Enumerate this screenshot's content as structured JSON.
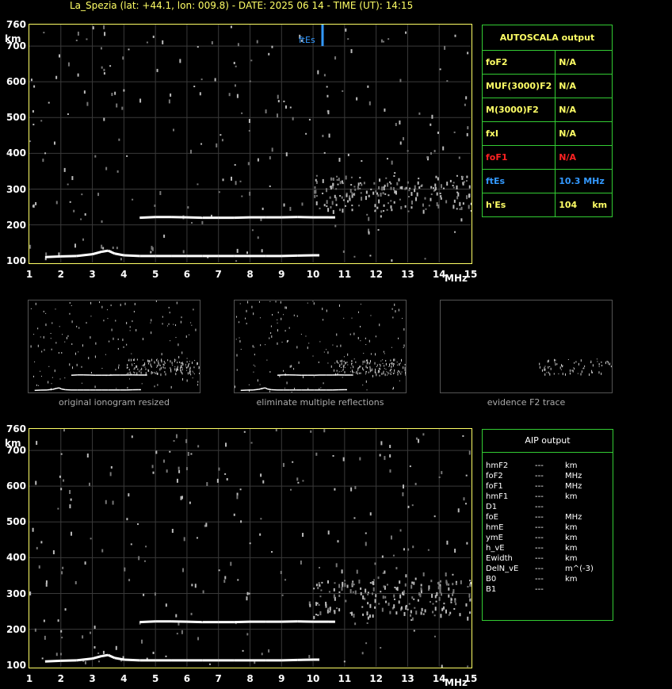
{
  "header": {
    "title": "La_Spezia (lat: +44.1, lon: 009.8) - DATE: 2025 06 14 - TIME (UT): 14:15"
  },
  "axes": {
    "y_unit": "km",
    "x_unit": "MHz",
    "y_ticks": [
      "760",
      "700",
      "600",
      "500",
      "400",
      "300",
      "200",
      "100"
    ],
    "x_ticks": [
      "1",
      "2",
      "3",
      "4",
      "5",
      "6",
      "7",
      "8",
      "9",
      "10",
      "11",
      "12",
      "13",
      "14",
      "15"
    ]
  },
  "marker": {
    "label": "ftEs",
    "value": 10.3,
    "color": "#3399ff"
  },
  "small_panels": [
    {
      "caption": "original ionogram resized"
    },
    {
      "caption": "eliminate multiple reflections"
    },
    {
      "caption": "evidence F2 trace"
    }
  ],
  "autoscala": {
    "header": "AUTOSCALA output",
    "rows": [
      {
        "label": "foF2",
        "value": "N/A",
        "color": "#ffff66"
      },
      {
        "label": "MUF(3000)F2",
        "value": "N/A",
        "color": "#ffff66"
      },
      {
        "label": "M(3000)F2",
        "value": "N/A",
        "color": "#ffff66"
      },
      {
        "label": "fxI",
        "value": "N/A",
        "color": "#ffff66"
      },
      {
        "label": "foF1",
        "value": "N/A",
        "color": "#ff2222"
      },
      {
        "label": "ftEs",
        "value": "10.3 MHz",
        "color": "#3399ff"
      },
      {
        "label": "h'Es",
        "value": "104",
        "unit": "km",
        "color": "#ffff66"
      }
    ]
  },
  "aip": {
    "header": "AIP output",
    "rows": [
      {
        "param": "hmF2",
        "value": "---",
        "unit": "km"
      },
      {
        "param": "foF2",
        "value": "---",
        "unit": "MHz"
      },
      {
        "param": "foF1",
        "value": "---",
        "unit": "MHz"
      },
      {
        "param": "hmF1",
        "value": "---",
        "unit": "km"
      },
      {
        "param": "D1",
        "value": "---",
        "unit": ""
      },
      {
        "param": "foE",
        "value": "---",
        "unit": "MHz"
      },
      {
        "param": "hmE",
        "value": "---",
        "unit": "km"
      },
      {
        "param": "ymE",
        "value": "---",
        "unit": "km"
      },
      {
        "param": "h_vE",
        "value": "---",
        "unit": "km"
      },
      {
        "param": "Ewidth",
        "value": "---",
        "unit": "km"
      },
      {
        "param": "DelN_vE",
        "value": "---",
        "unit": "m^(-3)"
      },
      {
        "param": "B0",
        "value": "---",
        "unit": "km"
      },
      {
        "param": "B1",
        "value": "---",
        "unit": ""
      }
    ]
  },
  "chart_data": [
    {
      "type": "scatter",
      "title": "",
      "xlabel": "MHz",
      "ylabel": "km",
      "xlim": [
        1,
        15
      ],
      "ylim": [
        95,
        760
      ],
      "series": [
        {
          "name": "",
          "x": [
            1.5,
            2,
            2.5,
            3,
            3.3,
            3.5,
            3.7,
            4,
            4.5,
            5,
            5.5,
            6,
            6.5,
            7,
            7.5,
            8,
            8.5,
            9,
            9.5,
            10,
            10.2
          ],
          "values": [
            110,
            112,
            113,
            118,
            125,
            128,
            120,
            115,
            113,
            113,
            113,
            113,
            113,
            113,
            113,
            113,
            113,
            113,
            114,
            115,
            115
          ]
        },
        {
          "name": "",
          "x": [
            4.5,
            5,
            5.5,
            6,
            6.5,
            7,
            7.5,
            8,
            8.5,
            9,
            9.5,
            10,
            10.5,
            10.7
          ],
          "values": [
            220,
            222,
            222,
            221,
            220,
            220,
            220,
            221,
            221,
            221,
            222,
            221,
            221,
            221
          ]
        }
      ]
    },
    {
      "type": "scatter",
      "title": "",
      "xlabel": "MHz",
      "ylabel": "km",
      "xlim": [
        1,
        15
      ],
      "ylim": [
        95,
        760
      ],
      "series": [
        {
          "name": "",
          "x": [
            1.5,
            2,
            2.5,
            3,
            3.3,
            3.5,
            3.7,
            4,
            4.5,
            5,
            5.5,
            6,
            6.5,
            7,
            7.5,
            8,
            8.5,
            9,
            9.5,
            10,
            10.2
          ],
          "values": [
            110,
            112,
            113,
            118,
            125,
            128,
            120,
            115,
            113,
            113,
            113,
            113,
            113,
            113,
            113,
            113,
            113,
            113,
            114,
            115,
            115
          ]
        },
        {
          "name": "",
          "x": [
            4.5,
            5,
            5.5,
            6,
            6.5,
            7,
            7.5,
            8,
            8.5,
            9,
            9.5,
            10,
            10.5,
            10.7
          ],
          "values": [
            220,
            222,
            222,
            221,
            220,
            220,
            220,
            221,
            221,
            221,
            222,
            221,
            221,
            221
          ]
        }
      ]
    }
  ]
}
